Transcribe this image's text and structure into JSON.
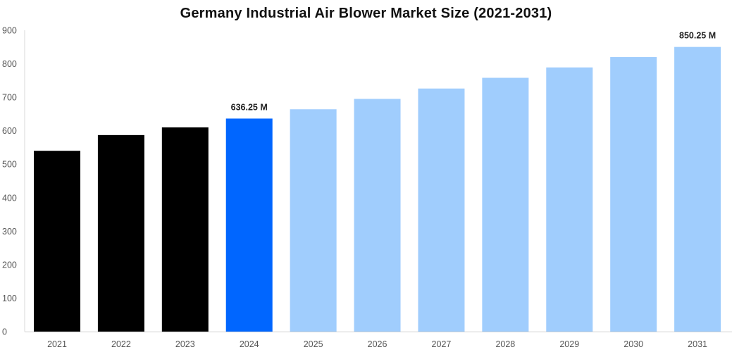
{
  "chart_data": {
    "type": "bar",
    "title": "Germany Industrial Air Blower Market Size (2021-2031)",
    "xlabel": "",
    "ylabel": "",
    "categories": [
      "2021",
      "2022",
      "2023",
      "2024",
      "2025",
      "2026",
      "2027",
      "2028",
      "2029",
      "2030",
      "2031"
    ],
    "values": [
      540,
      587,
      610,
      636.25,
      664,
      695,
      726,
      758,
      789,
      820,
      850.25
    ],
    "bar_colors": [
      "#000000",
      "#000000",
      "#000000",
      "#0066ff",
      "#a0cdfd",
      "#a0cdfd",
      "#a0cdfd",
      "#a0cdfd",
      "#a0cdfd",
      "#a0cdfd",
      "#a0cdfd"
    ],
    "data_labels": [
      {
        "category": "2024",
        "text": "636.25 M"
      },
      {
        "category": "2031",
        "text": "850.25 M"
      }
    ],
    "ylim": [
      0,
      900
    ],
    "yticks": [
      0,
      100,
      200,
      300,
      400,
      500,
      600,
      700,
      800,
      900
    ],
    "grid": false,
    "legend": "none"
  }
}
